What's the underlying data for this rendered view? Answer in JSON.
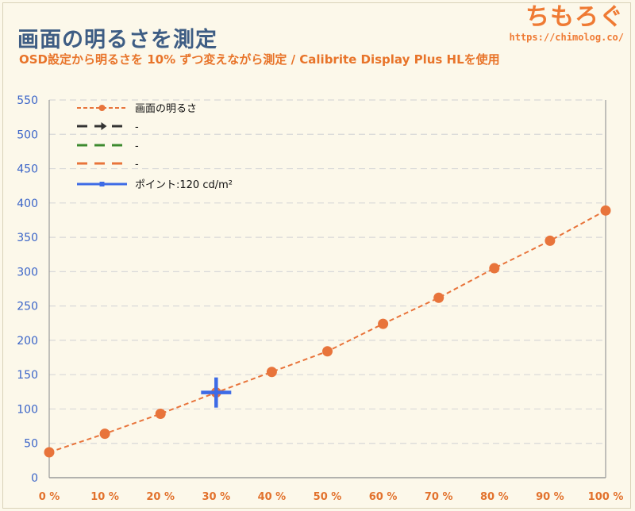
{
  "header": {
    "title": "画面の明るさを測定",
    "subtitle": "OSD設定から明るさを 10% ずつ変えながら測定 / Calibrite Display Plus HLを使用"
  },
  "brand": {
    "name": "ちもろぐ",
    "url": "https://chimolog.co/"
  },
  "colors": {
    "series": "#e8743b",
    "point": "#3d6be6",
    "ytick": "#3a64c8",
    "xtick": "#e2722d",
    "title": "#3e5d84",
    "legend_black": "#333333",
    "legend_green": "#3c8a2e",
    "legend_orange": "#e8743b"
  },
  "legend": {
    "items": [
      {
        "label": "画面の明るさ"
      },
      {
        "label": "-"
      },
      {
        "label": "-"
      },
      {
        "label": "-"
      },
      {
        "label": "ポイント:120 cd/m²"
      }
    ]
  },
  "chart_data": {
    "type": "line",
    "categories": [
      "0 %",
      "10 %",
      "20 %",
      "30 %",
      "40 %",
      "50 %",
      "60 %",
      "70 %",
      "80 %",
      "90 %",
      "100 %"
    ],
    "x": [
      0,
      10,
      20,
      30,
      40,
      50,
      60,
      70,
      80,
      90,
      100
    ],
    "series": [
      {
        "name": "画面の明るさ",
        "values": [
          37,
          64,
          93,
          124,
          154,
          184,
          224,
          262,
          305,
          345,
          389
        ]
      }
    ],
    "point": {
      "name": "ポイント:120 cd/m²",
      "x": 30,
      "y": 124
    },
    "yticks": [
      0,
      50,
      100,
      150,
      200,
      250,
      300,
      350,
      400,
      450,
      500,
      550
    ],
    "ylim": [
      0,
      550
    ],
    "xlim": [
      0,
      100
    ],
    "grid": true,
    "legend_position": "top-left"
  }
}
